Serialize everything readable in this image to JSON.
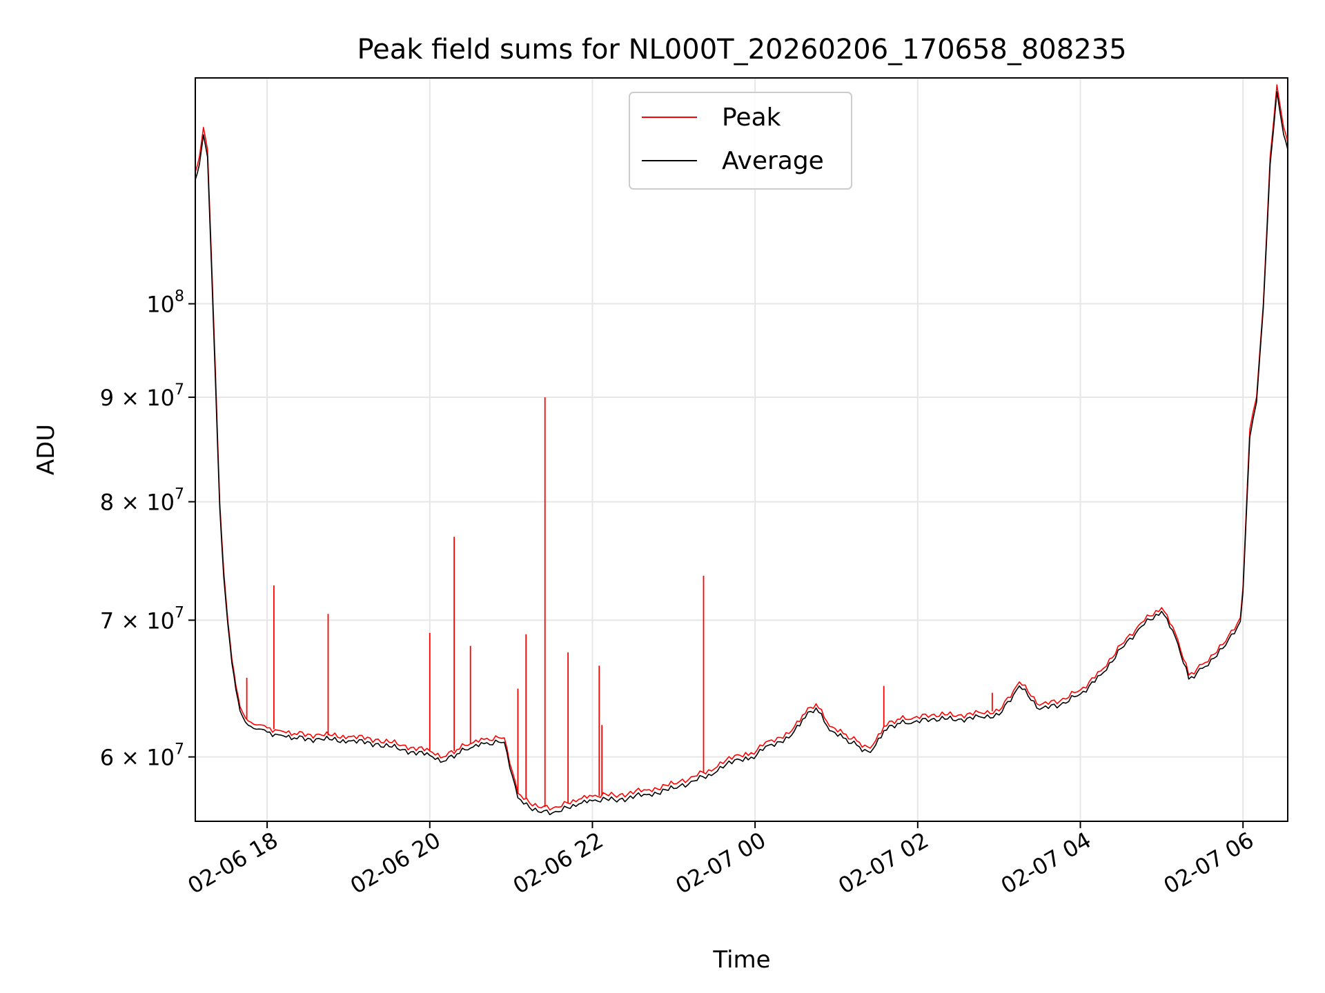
{
  "chart_data": {
    "type": "line",
    "title": "Peak field sums for NL000T_20260206_170658_808235",
    "xlabel": "Time",
    "ylabel": "ADU",
    "yscale": "log",
    "xlim": [
      "2026-02-06 17:07",
      "2026-02-07 06:33"
    ],
    "ylim": [
      55800000,
      129000000
    ],
    "grid": true,
    "legend_position": "top-center",
    "x_ticks": [
      {
        "t": "2026-02-06 18:00",
        "label": "02-06 18"
      },
      {
        "t": "2026-02-06 20:00",
        "label": "02-06 20"
      },
      {
        "t": "2026-02-06 22:00",
        "label": "02-06 22"
      },
      {
        "t": "2026-02-07 00:00",
        "label": "02-07 00"
      },
      {
        "t": "2026-02-07 02:00",
        "label": "02-07 02"
      },
      {
        "t": "2026-02-07 04:00",
        "label": "02-07 04"
      },
      {
        "t": "2026-02-07 06:00",
        "label": "02-07 06"
      }
    ],
    "y_ticks": [
      {
        "v": 60000000,
        "mant": "6",
        "exp": "7"
      },
      {
        "v": 70000000,
        "mant": "7",
        "exp": "7"
      },
      {
        "v": 80000000,
        "mant": "8",
        "exp": "7"
      },
      {
        "v": 90000000,
        "mant": "9",
        "exp": "7"
      },
      {
        "v": 100000000,
        "mant": "",
        "exp": "8"
      }
    ],
    "colors": {
      "peak": "#ff0000",
      "average": "#000000",
      "grid": "#e6e6e6"
    },
    "series": [
      {
        "name": "Peak",
        "x": [
          "2026-02-06 17:07",
          "2026-02-06 17:10",
          "2026-02-06 17:13",
          "2026-02-06 17:16",
          "2026-02-06 17:19",
          "2026-02-06 17:22",
          "2026-02-06 17:25",
          "2026-02-06 17:28",
          "2026-02-06 17:31",
          "2026-02-06 17:34",
          "2026-02-06 17:37",
          "2026-02-06 17:40",
          "2026-02-06 17:44",
          "2026-02-06 17:48",
          "2026-02-06 17:52",
          "2026-02-06 17:56",
          "2026-02-06 18:00",
          "2026-02-06 18:10",
          "2026-02-06 18:20",
          "2026-02-06 18:40",
          "2026-02-06 19:00",
          "2026-02-06 19:20",
          "2026-02-06 19:40",
          "2026-02-06 20:00",
          "2026-02-06 20:10",
          "2026-02-06 20:20",
          "2026-02-06 20:30",
          "2026-02-06 20:40",
          "2026-02-06 20:55",
          "2026-02-06 21:05",
          "2026-02-06 21:20",
          "2026-02-06 21:35",
          "2026-02-06 21:50",
          "2026-02-06 22:00",
          "2026-02-06 22:20",
          "2026-02-06 22:40",
          "2026-02-06 23:00",
          "2026-02-06 23:15",
          "2026-02-06 23:30",
          "2026-02-06 23:45",
          "2026-02-06 23:55",
          "2026-02-07 00:10",
          "2026-02-07 00:25",
          "2026-02-07 00:35",
          "2026-02-07 00:45",
          "2026-02-07 00:55",
          "2026-02-07 01:05",
          "2026-02-07 01:15",
          "2026-02-07 01:25",
          "2026-02-07 01:35",
          "2026-02-07 01:45",
          "2026-02-07 01:55",
          "2026-02-07 02:10",
          "2026-02-07 02:30",
          "2026-02-07 02:45",
          "2026-02-07 03:00",
          "2026-02-07 03:15",
          "2026-02-07 03:30",
          "2026-02-07 03:45",
          "2026-02-07 04:00",
          "2026-02-07 04:15",
          "2026-02-07 04:30",
          "2026-02-07 04:45",
          "2026-02-07 05:00",
          "2026-02-07 05:10",
          "2026-02-07 05:20",
          "2026-02-07 05:30",
          "2026-02-07 05:45",
          "2026-02-07 05:58",
          "2026-02-07 06:00",
          "2026-02-07 06:05",
          "2026-02-07 06:10",
          "2026-02-07 06:15",
          "2026-02-07 06:20",
          "2026-02-07 06:25",
          "2026-02-07 06:30",
          "2026-02-07 06:33"
        ],
        "y": [
          116000000,
          118000000,
          122000000,
          119000000,
          105000000,
          92000000,
          80000000,
          74000000,
          70000000,
          67000000,
          65000000,
          63500000,
          62700000,
          62400000,
          62200000,
          62200000,
          62000000,
          61800000,
          61600000,
          61500000,
          61400000,
          61200000,
          60800000,
          60400000,
          60000000,
          60500000,
          60900000,
          61200000,
          61300000,
          57600000,
          56700000,
          56700000,
          57200000,
          57400000,
          57500000,
          57800000,
          58200000,
          58700000,
          59200000,
          60100000,
          60100000,
          61100000,
          61600000,
          62900000,
          63700000,
          62100000,
          61600000,
          61100000,
          60600000,
          62100000,
          62600000,
          62600000,
          62900000,
          62900000,
          63100000,
          63200000,
          65300000,
          63600000,
          63900000,
          64700000,
          66100000,
          68100000,
          69800000,
          71000000,
          69000000,
          65800000,
          66600000,
          68100000,
          70200000,
          72700000,
          86800000,
          90000000,
          100000000,
          118000000,
          128000000,
          122000000,
          120000000
        ]
      },
      {
        "name": "Average",
        "x": [
          "2026-02-06 17:07",
          "2026-02-06 17:10",
          "2026-02-06 17:13",
          "2026-02-06 17:16",
          "2026-02-06 17:19",
          "2026-02-06 17:22",
          "2026-02-06 17:25",
          "2026-02-06 17:28",
          "2026-02-06 17:31",
          "2026-02-06 17:34",
          "2026-02-06 17:37",
          "2026-02-06 17:40",
          "2026-02-06 17:44",
          "2026-02-06 17:48",
          "2026-02-06 17:52",
          "2026-02-06 17:56",
          "2026-02-06 18:00",
          "2026-02-06 18:10",
          "2026-02-06 18:20",
          "2026-02-06 18:40",
          "2026-02-06 19:00",
          "2026-02-06 19:20",
          "2026-02-06 19:40",
          "2026-02-06 20:00",
          "2026-02-06 20:10",
          "2026-02-06 20:20",
          "2026-02-06 20:30",
          "2026-02-06 20:40",
          "2026-02-06 20:55",
          "2026-02-06 21:05",
          "2026-02-06 21:20",
          "2026-02-06 21:35",
          "2026-02-06 21:50",
          "2026-02-06 22:00",
          "2026-02-06 22:20",
          "2026-02-06 22:40",
          "2026-02-06 23:00",
          "2026-02-06 23:15",
          "2026-02-06 23:30",
          "2026-02-06 23:45",
          "2026-02-06 23:55",
          "2026-02-07 00:10",
          "2026-02-07 00:25",
          "2026-02-07 00:35",
          "2026-02-07 00:45",
          "2026-02-07 00:55",
          "2026-02-07 01:05",
          "2026-02-07 01:15",
          "2026-02-07 01:25",
          "2026-02-07 01:35",
          "2026-02-07 01:45",
          "2026-02-07 01:55",
          "2026-02-07 02:10",
          "2026-02-07 02:30",
          "2026-02-07 02:45",
          "2026-02-07 03:00",
          "2026-02-07 03:15",
          "2026-02-07 03:30",
          "2026-02-07 03:45",
          "2026-02-07 04:00",
          "2026-02-07 04:15",
          "2026-02-07 04:30",
          "2026-02-07 04:45",
          "2026-02-07 05:00",
          "2026-02-07 05:10",
          "2026-02-07 05:20",
          "2026-02-07 05:30",
          "2026-02-07 05:45",
          "2026-02-07 05:58",
          "2026-02-07 06:00",
          "2026-02-07 06:05",
          "2026-02-07 06:10",
          "2026-02-07 06:15",
          "2026-02-07 06:20",
          "2026-02-07 06:25",
          "2026-02-07 06:30",
          "2026-02-07 06:33"
        ],
        "y": [
          115000000,
          117000000,
          121000000,
          118000000,
          104000000,
          91000000,
          79500000,
          73500000,
          69700000,
          66700000,
          64700000,
          63200000,
          62400000,
          62100000,
          61900000,
          61900000,
          61700000,
          61500000,
          61300000,
          61200000,
          61100000,
          60900000,
          60500000,
          60100000,
          59700000,
          60200000,
          60600000,
          60900000,
          61000000,
          57300000,
          56400000,
          56400000,
          56900000,
          57100000,
          57200000,
          57500000,
          57900000,
          58400000,
          58900000,
          59800000,
          59800000,
          60800000,
          61300000,
          62600000,
          63400000,
          61800000,
          61300000,
          60800000,
          60300000,
          61800000,
          62300000,
          62300000,
          62600000,
          62600000,
          62800000,
          62900000,
          65000000,
          63300000,
          63600000,
          64400000,
          65800000,
          67800000,
          69500000,
          70700000,
          68700000,
          65500000,
          66300000,
          67800000,
          69900000,
          72300000,
          86000000,
          89500000,
          99500000,
          117000000,
          127000000,
          121000000,
          119000000
        ]
      }
    ],
    "spikes": [
      {
        "x": "2026-02-06 17:45",
        "y": 65600000
      },
      {
        "x": "2026-02-06 18:05",
        "y": 72800000
      },
      {
        "x": "2026-02-06 18:45",
        "y": 70500000
      },
      {
        "x": "2026-02-06 20:00",
        "y": 69000000
      },
      {
        "x": "2026-02-06 20:18",
        "y": 76900000
      },
      {
        "x": "2026-02-06 20:30",
        "y": 68000000
      },
      {
        "x": "2026-02-06 21:05",
        "y": 64800000
      },
      {
        "x": "2026-02-06 21:11",
        "y": 68900000
      },
      {
        "x": "2026-02-06 21:25",
        "y": 90000000
      },
      {
        "x": "2026-02-06 21:42",
        "y": 67500000
      },
      {
        "x": "2026-02-06 22:05",
        "y": 66500000
      },
      {
        "x": "2026-02-06 22:07",
        "y": 62200000
      },
      {
        "x": "2026-02-06 23:22",
        "y": 73600000
      },
      {
        "x": "2026-02-07 01:35",
        "y": 65000000
      },
      {
        "x": "2026-02-07 02:55",
        "y": 64500000
      }
    ]
  }
}
